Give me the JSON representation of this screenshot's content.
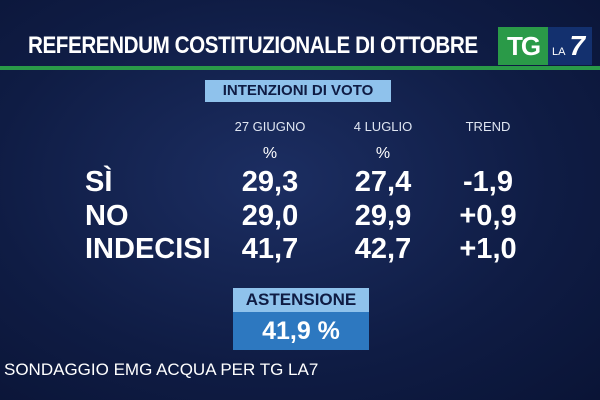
{
  "header": {
    "title": "REFERENDUM COSTITUZIONALE DI OTTOBRE",
    "logo": {
      "tg": "TG",
      "la": "LA",
      "seven": "7"
    }
  },
  "subtitle": "INTENZIONI DI VOTO",
  "table": {
    "columns": [
      "27 GIUGNO",
      "4 LUGLIO",
      "TREND"
    ],
    "units": [
      "%",
      "%"
    ],
    "rows": [
      [
        "SÌ",
        "29,3",
        "27,4",
        "-1,9"
      ],
      [
        "NO",
        "29,0",
        "29,9",
        "+0,9"
      ],
      [
        "INDECISI",
        "41,7",
        "42,7",
        "+1,0"
      ]
    ]
  },
  "abstention": {
    "label": "ASTENSIONE",
    "value": "41,9 %"
  },
  "footer": "SONDAGGIO EMG ACQUA PER TG LA7"
}
